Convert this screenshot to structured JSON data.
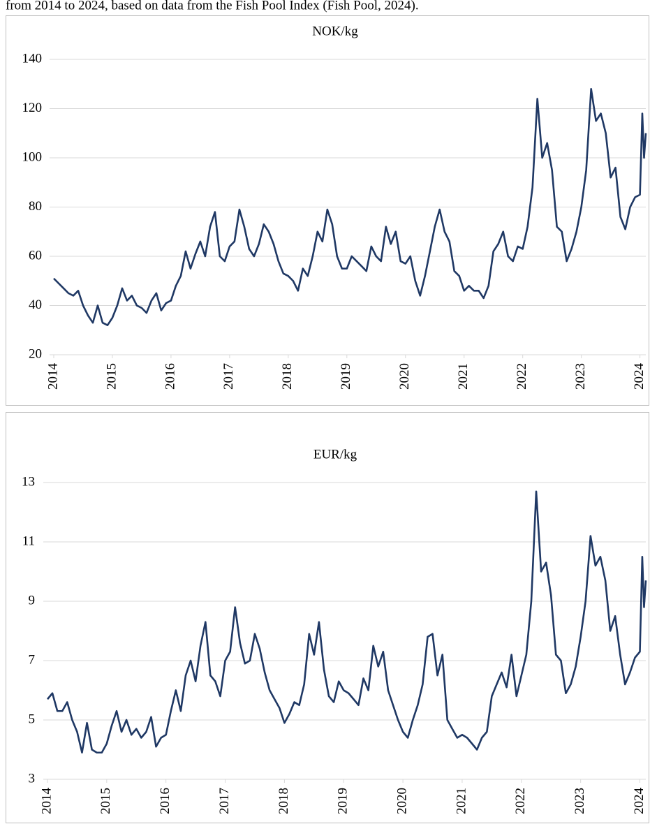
{
  "caption": "from 2014 to 2024, based on data from the Fish Pool Index (Fish Pool, 2024).",
  "chart_data": [
    {
      "type": "line",
      "title": "NOK/kg",
      "x": [
        2014,
        2014.083,
        2014.167,
        2014.25,
        2014.333,
        2014.417,
        2014.5,
        2014.583,
        2014.667,
        2014.75,
        2014.833,
        2014.917,
        2015,
        2015.083,
        2015.167,
        2015.25,
        2015.333,
        2015.417,
        2015.5,
        2015.583,
        2015.667,
        2015.75,
        2015.833,
        2015.917,
        2016,
        2016.083,
        2016.167,
        2016.25,
        2016.333,
        2016.417,
        2016.5,
        2016.583,
        2016.667,
        2016.75,
        2016.833,
        2016.917,
        2017,
        2017.083,
        2017.167,
        2017.25,
        2017.333,
        2017.417,
        2017.5,
        2017.583,
        2017.667,
        2017.75,
        2017.833,
        2017.917,
        2018,
        2018.083,
        2018.167,
        2018.25,
        2018.333,
        2018.417,
        2018.5,
        2018.583,
        2018.667,
        2018.75,
        2018.833,
        2018.917,
        2019,
        2019.083,
        2019.167,
        2019.25,
        2019.333,
        2019.417,
        2019.5,
        2019.583,
        2019.667,
        2019.75,
        2019.833,
        2019.917,
        2020,
        2020.083,
        2020.167,
        2020.25,
        2020.333,
        2020.417,
        2020.5,
        2020.583,
        2020.667,
        2020.75,
        2020.833,
        2020.917,
        2021,
        2021.083,
        2021.167,
        2021.25,
        2021.333,
        2021.417,
        2021.5,
        2021.583,
        2021.667,
        2021.75,
        2021.833,
        2021.917,
        2022,
        2022.083,
        2022.167,
        2022.25,
        2022.333,
        2022.417,
        2022.5,
        2022.583,
        2022.667,
        2022.75,
        2022.833,
        2022.917,
        2023,
        2023.083,
        2023.167,
        2023.25,
        2023.333,
        2023.417,
        2023.5,
        2023.583,
        2023.667,
        2023.75,
        2023.833,
        2023.917,
        2024,
        2024.04,
        2024.07,
        2024.1
      ],
      "series": [
        {
          "name": "NOK/kg",
          "color": "#1f3864",
          "values": [
            51,
            49,
            47,
            45,
            44,
            46,
            40,
            36,
            33,
            40,
            33,
            32,
            35,
            40,
            47,
            42,
            44,
            40,
            39,
            37,
            42,
            45,
            38,
            41,
            42,
            48,
            52,
            62,
            55,
            61,
            66,
            60,
            72,
            78,
            60,
            58,
            64,
            66,
            79,
            72,
            63,
            60,
            65,
            73,
            70,
            65,
            58,
            53,
            52,
            50,
            46,
            55,
            52,
            60,
            70,
            66,
            79,
            73,
            60,
            55,
            55,
            60,
            58,
            56,
            54,
            64,
            60,
            58,
            72,
            65,
            70,
            58,
            57,
            60,
            50,
            44,
            52,
            62,
            72,
            79,
            70,
            66,
            54,
            52,
            46,
            48,
            46,
            46,
            43,
            48,
            62,
            65,
            70,
            60,
            58,
            64,
            63,
            72,
            88,
            124,
            100,
            106,
            95,
            72,
            70,
            58,
            63,
            70,
            80,
            95,
            128,
            115,
            118,
            110,
            92,
            96,
            76,
            71,
            80,
            84,
            85,
            118,
            100,
            110
          ]
        }
      ],
      "xlim": [
        2014,
        2024.1
      ],
      "xticks": [
        2014,
        2015,
        2016,
        2017,
        2018,
        2019,
        2020,
        2021,
        2022,
        2023,
        2024
      ],
      "ylim": [
        20,
        140
      ],
      "yticks": [
        20,
        40,
        60,
        80,
        100,
        120,
        140
      ],
      "grid": true
    },
    {
      "type": "line",
      "title": "EUR/kg",
      "x": [
        2014,
        2014.083,
        2014.167,
        2014.25,
        2014.333,
        2014.417,
        2014.5,
        2014.583,
        2014.667,
        2014.75,
        2014.833,
        2014.917,
        2015,
        2015.083,
        2015.167,
        2015.25,
        2015.333,
        2015.417,
        2015.5,
        2015.583,
        2015.667,
        2015.75,
        2015.833,
        2015.917,
        2016,
        2016.083,
        2016.167,
        2016.25,
        2016.333,
        2016.417,
        2016.5,
        2016.583,
        2016.667,
        2016.75,
        2016.833,
        2016.917,
        2017,
        2017.083,
        2017.167,
        2017.25,
        2017.333,
        2017.417,
        2017.5,
        2017.583,
        2017.667,
        2017.75,
        2017.833,
        2017.917,
        2018,
        2018.083,
        2018.167,
        2018.25,
        2018.333,
        2018.417,
        2018.5,
        2018.583,
        2018.667,
        2018.75,
        2018.833,
        2018.917,
        2019,
        2019.083,
        2019.167,
        2019.25,
        2019.333,
        2019.417,
        2019.5,
        2019.583,
        2019.667,
        2019.75,
        2019.833,
        2019.917,
        2020,
        2020.083,
        2020.167,
        2020.25,
        2020.333,
        2020.417,
        2020.5,
        2020.583,
        2020.667,
        2020.75,
        2020.833,
        2020.917,
        2021,
        2021.083,
        2021.167,
        2021.25,
        2021.333,
        2021.417,
        2021.5,
        2021.583,
        2021.667,
        2021.75,
        2021.833,
        2021.917,
        2022,
        2022.083,
        2022.167,
        2022.25,
        2022.333,
        2022.417,
        2022.5,
        2022.583,
        2022.667,
        2022.75,
        2022.833,
        2022.917,
        2023,
        2023.083,
        2023.167,
        2023.25,
        2023.333,
        2023.417,
        2023.5,
        2023.583,
        2023.667,
        2023.75,
        2023.833,
        2023.917,
        2024,
        2024.04,
        2024.07,
        2024.1
      ],
      "series": [
        {
          "name": "EUR/kg",
          "color": "#1f3864",
          "values": [
            5.7,
            5.9,
            5.3,
            5.3,
            5.6,
            5.0,
            4.6,
            3.9,
            4.9,
            4.0,
            3.9,
            3.9,
            4.2,
            4.8,
            5.3,
            4.6,
            5.0,
            4.5,
            4.7,
            4.4,
            4.6,
            5.1,
            4.1,
            4.4,
            4.5,
            5.3,
            6.0,
            5.3,
            6.5,
            7.0,
            6.3,
            7.5,
            8.3,
            6.5,
            6.3,
            5.8,
            7.0,
            7.3,
            8.8,
            7.6,
            6.9,
            7.0,
            7.9,
            7.4,
            6.6,
            6.0,
            5.7,
            5.4,
            4.9,
            5.2,
            5.6,
            5.5,
            6.2,
            7.9,
            7.2,
            8.3,
            6.7,
            5.8,
            5.6,
            6.3,
            6.0,
            5.9,
            5.7,
            5.5,
            6.4,
            6.0,
            7.5,
            6.8,
            7.3,
            6.0,
            5.5,
            5.0,
            4.6,
            4.4,
            5.0,
            5.5,
            6.2,
            7.8,
            7.9,
            6.5,
            7.2,
            5.0,
            4.7,
            4.4,
            4.5,
            4.4,
            4.2,
            4.0,
            4.4,
            4.6,
            5.8,
            6.2,
            6.6,
            6.1,
            7.2,
            5.8,
            6.5,
            7.2,
            9.0,
            12.7,
            10.0,
            10.3,
            9.2,
            7.2,
            7.0,
            5.9,
            6.2,
            6.8,
            7.8,
            9.0,
            11.2,
            10.2,
            10.5,
            9.7,
            8.0,
            8.5,
            7.2,
            6.2,
            6.6,
            7.1,
            7.3,
            10.5,
            8.8,
            9.7
          ]
        }
      ],
      "xlim": [
        2014,
        2024.1
      ],
      "xticks": [
        2014,
        2015,
        2016,
        2017,
        2018,
        2019,
        2020,
        2021,
        2022,
        2023,
        2024
      ],
      "ylim": [
        3,
        13
      ],
      "yticks": [
        3,
        5,
        7,
        9,
        11,
        13
      ],
      "grid": true
    }
  ]
}
